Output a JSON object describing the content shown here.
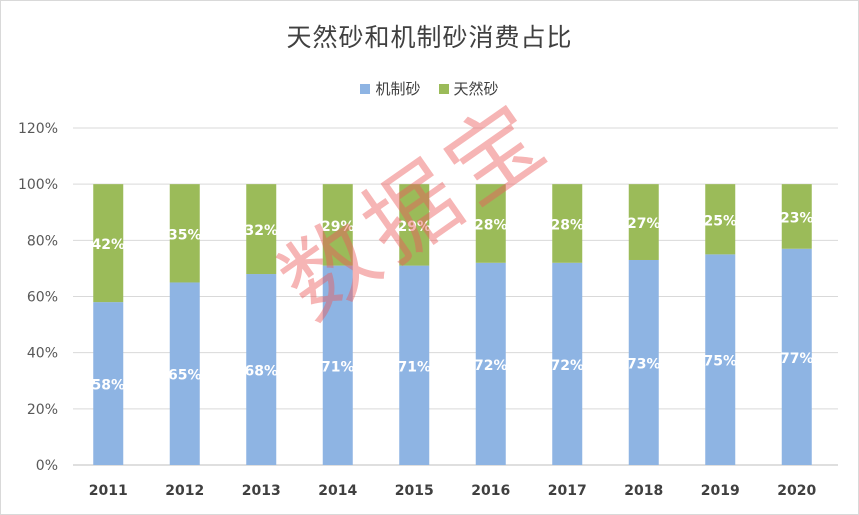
{
  "chart_data": {
    "type": "bar",
    "stacked": true,
    "title": "天然砂和机制砂消费占比",
    "categories": [
      "2011",
      "2012",
      "2013",
      "2014",
      "2015",
      "2016",
      "2017",
      "2018",
      "2019",
      "2020"
    ],
    "series": [
      {
        "name": "机制砂",
        "color": "#8eb4e3",
        "values": [
          58,
          65,
          68,
          71,
          71,
          72,
          72,
          73,
          75,
          77
        ],
        "labels": [
          "58%",
          "65%",
          "68%",
          "71%",
          "71%",
          "72%",
          "72%",
          "73%",
          "75%",
          "77%"
        ]
      },
      {
        "name": "天然砂",
        "color": "#9bbb59",
        "values": [
          42,
          35,
          32,
          29,
          29,
          28,
          28,
          27,
          25,
          23
        ],
        "labels": [
          "42%",
          "35%",
          "32%",
          "29%",
          "29%",
          "28%",
          "28%",
          "27%",
          "25%",
          "23%"
        ]
      }
    ],
    "ylim": [
      0,
      120
    ],
    "yticks": [
      "0%",
      "20%",
      "40%",
      "60%",
      "80%",
      "100%",
      "120%"
    ],
    "grid": true,
    "legend": "top"
  },
  "watermark": "数据宝"
}
